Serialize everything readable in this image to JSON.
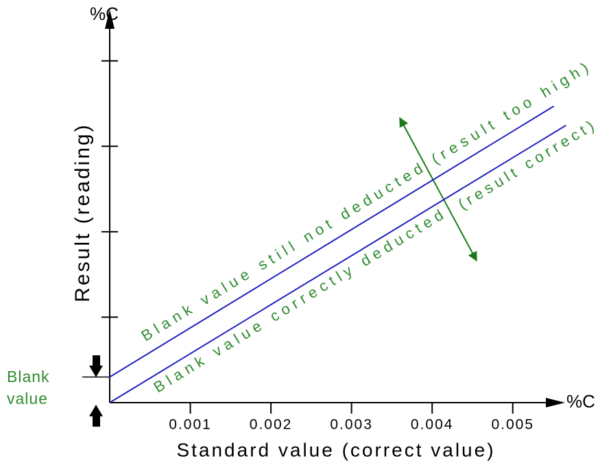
{
  "chart_data": {
    "type": "line",
    "x_label": "Standard value (correct value)",
    "x_unit": "%C",
    "y_label": "Result (reading)",
    "y_unit": "%C",
    "blank_label": [
      "Blank",
      "value"
    ],
    "xlim": [
      0,
      0.0057
    ],
    "xticks": [
      0.001,
      0.002,
      0.003,
      0.004,
      0.005
    ],
    "ylim": [
      0,
      4.6
    ],
    "yticks": [
      1,
      2,
      3,
      4
    ],
    "series": [
      {
        "name": "Blank value still not deducted",
        "note": "(result too high)",
        "color": "#2020c0",
        "x": [
          0,
          0.00551
        ],
        "values": [
          0.3,
          3.47
        ]
      },
      {
        "name": "Blank value correctly deducted",
        "note": "(result correct)",
        "color": "#2020c0",
        "x": [
          0,
          0.00566
        ],
        "values": [
          0,
          3.245
        ]
      }
    ]
  }
}
